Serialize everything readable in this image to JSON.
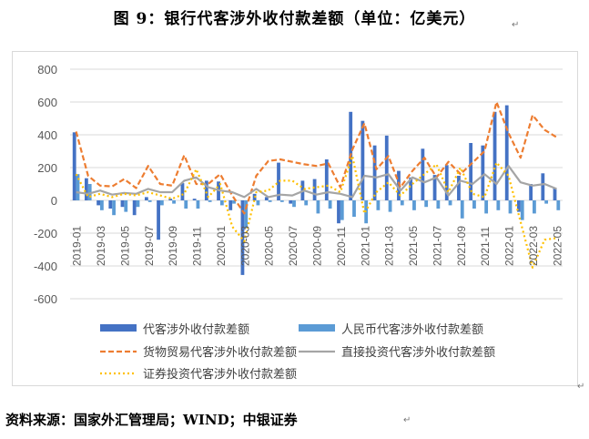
{
  "figure": {
    "title": "图 9：银行代客涉外收付款差额（单位：亿美元）",
    "source": "资料来源：国家外汇管理局；WIND；中银证券",
    "para_mark": "↵"
  },
  "chart_data": {
    "type": "bar",
    "ylim": [
      -600,
      800
    ],
    "yticks": [
      "800",
      "600",
      "400",
      "200",
      "0",
      "-200",
      "-400",
      "-600"
    ],
    "ytick_values": [
      800,
      600,
      400,
      200,
      0,
      -200,
      -400,
      -600
    ],
    "categories": [
      "2019-01",
      "2019-02",
      "2019-03",
      "2019-04",
      "2019-05",
      "2019-06",
      "2019-07",
      "2019-08",
      "2019-09",
      "2019-10",
      "2019-11",
      "2019-12",
      "2020-01",
      "2020-02",
      "2020-03",
      "2020-04",
      "2020-05",
      "2020-06",
      "2020-07",
      "2020-08",
      "2020-09",
      "2020-10",
      "2020-11",
      "2020-12",
      "2021-01",
      "2021-02",
      "2021-03",
      "2021-04",
      "2021-05",
      "2021-06",
      "2021-07",
      "2021-08",
      "2021-09",
      "2021-10",
      "2021-11",
      "2021-12",
      "2022-01",
      "2022-02",
      "2022-03",
      "2022-04",
      "2022-05"
    ],
    "xtick_labels": [
      "2019-01",
      "2019-03",
      "2019-05",
      "2019-07",
      "2019-09",
      "2019-11",
      "2020-01",
      "2020-03",
      "2020-05",
      "2020-07",
      "2020-09",
      "2020-11",
      "2021-01",
      "2021-03",
      "2021-05",
      "2021-07",
      "2021-09",
      "2021-11",
      "2022-01",
      "2022-03",
      "2022-05"
    ],
    "series": [
      {
        "name": "代客涉外收付款差额",
        "kind": "bar",
        "color": "#4472c4",
        "values": [
          415,
          135,
          -30,
          -50,
          -40,
          -90,
          20,
          -240,
          10,
          105,
          10,
          120,
          115,
          -60,
          -455,
          40,
          20,
          230,
          -20,
          120,
          130,
          250,
          -140,
          540,
          485,
          335,
          395,
          180,
          140,
          315,
          155,
          215,
          150,
          350,
          335,
          540,
          580,
          -70,
          100,
          165,
          75
        ]
      },
      {
        "name": "人民币代客涉外收付款差额",
        "kind": "bar",
        "color": "#5b9bd5",
        "values": [
          160,
          100,
          -60,
          -90,
          -70,
          -40,
          -10,
          -30,
          -20,
          -50,
          -50,
          -10,
          -30,
          -20,
          -170,
          -30,
          -10,
          -10,
          -40,
          -30,
          -80,
          -50,
          -120,
          -100,
          -140,
          -60,
          -70,
          -30,
          -60,
          -40,
          -50,
          -30,
          -110,
          -50,
          -80,
          -60,
          -80,
          -120,
          -80,
          -20,
          -60
        ]
      },
      {
        "name": "货物贸易代客涉外收付款差额",
        "kind": "line",
        "color": "#ed7d31",
        "dash": "6,3",
        "values": [
          420,
          150,
          90,
          85,
          130,
          75,
          210,
          100,
          90,
          275,
          100,
          100,
          160,
          30,
          -80,
          150,
          240,
          250,
          235,
          220,
          210,
          225,
          80,
          310,
          470,
          190,
          270,
          80,
          180,
          260,
          140,
          235,
          160,
          230,
          300,
          600,
          410,
          260,
          520,
          430,
          385
        ]
      },
      {
        "name": "直接投资代客涉外收付款差额",
        "kind": "line",
        "color": "#a5a5a5",
        "dash": "",
        "values": [
          50,
          40,
          60,
          35,
          45,
          40,
          70,
          50,
          50,
          120,
          140,
          80,
          60,
          50,
          20,
          70,
          20,
          35,
          30,
          60,
          35,
          50,
          40,
          20,
          150,
          140,
          160,
          60,
          140,
          110,
          140,
          30,
          120,
          100,
          160,
          100,
          210,
          110,
          90,
          100,
          70
        ]
      },
      {
        "name": "证券投资代客涉外收付款差额",
        "kind": "line",
        "color": "#ffc000",
        "dash": "2,3",
        "values": [
          160,
          20,
          40,
          20,
          40,
          30,
          50,
          30,
          10,
          40,
          190,
          20,
          100,
          -160,
          -250,
          50,
          60,
          120,
          120,
          70,
          80,
          90,
          50,
          270,
          -80,
          50,
          110,
          30,
          100,
          160,
          220,
          50,
          200,
          40,
          20,
          230,
          150,
          -130,
          -410,
          -240,
          -230
        ]
      }
    ]
  }
}
